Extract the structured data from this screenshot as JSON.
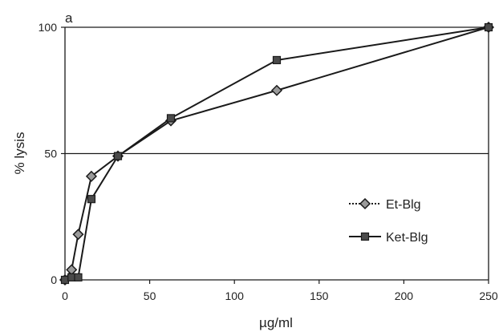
{
  "chart_data": {
    "type": "line",
    "panel_label": "a",
    "xlabel": "µg/ml",
    "ylabel": "% lysis",
    "xlim": [
      0,
      250
    ],
    "ylim": [
      0,
      100
    ],
    "x_ticks": [
      0,
      50,
      100,
      150,
      200,
      250
    ],
    "y_ticks": [
      0,
      50,
      100
    ],
    "grid": "horizontal",
    "legend_position": "bottom-right",
    "series": [
      {
        "name": "Et-Blg",
        "marker": "diamond",
        "line_style": "dotted",
        "x": [
          0,
          3.9,
          7.8,
          15.6,
          31.25,
          62.5,
          125,
          250
        ],
        "y": [
          0,
          4,
          18,
          41,
          49,
          63,
          75,
          100
        ]
      },
      {
        "name": "Ket-Blg",
        "marker": "square",
        "line_style": "solid",
        "x": [
          0,
          3.9,
          7.8,
          15.6,
          31.25,
          62.5,
          125,
          250
        ],
        "y": [
          0,
          1,
          1,
          32,
          49,
          64,
          87,
          100
        ]
      }
    ],
    "colors": {
      "line": "#1a1a1a",
      "grid": "#1a1a1a",
      "axis": "#1a1a1a"
    }
  }
}
